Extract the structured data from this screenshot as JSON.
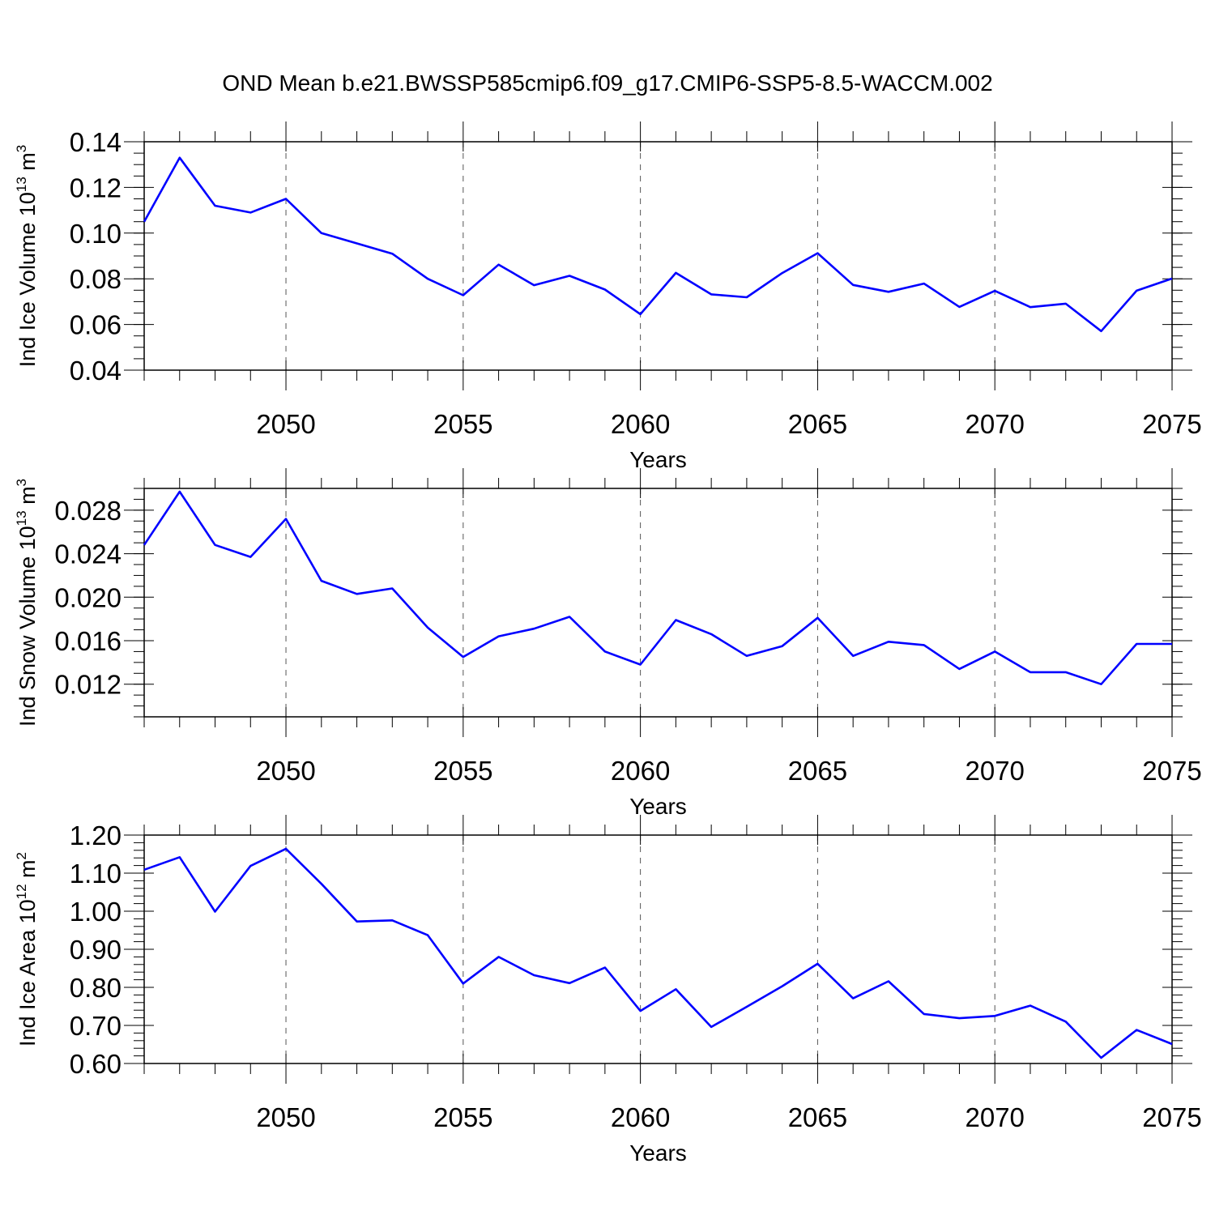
{
  "figure": {
    "title": "OND Mean b.e21.BWSSP585cmip6.f09_g17.CMIP6-SSP5-8.5-WACCM.002",
    "line_color": "#0000ff"
  },
  "chart_data": [
    {
      "type": "line",
      "ylabel_main": "Ind Ice Volume 10",
      "ylabel_sup": "13",
      "ylabel_unit": " m",
      "ylabel_unit_sup": "3",
      "xlabel": "Years",
      "xlim": [
        2046,
        2075
      ],
      "ylim": [
        0.04,
        0.14
      ],
      "yticks": [
        0.04,
        0.06,
        0.08,
        0.1,
        0.12,
        0.14
      ],
      "yticklabels": [
        "0.04",
        "0.06",
        "0.08",
        "0.10",
        "0.12",
        "0.14"
      ],
      "yminor_step": 0.005,
      "xticks": [
        2050,
        2055,
        2060,
        2065,
        2070,
        2075
      ],
      "xticklabels": [
        "2050",
        "2055",
        "2060",
        "2065",
        "2070",
        "2075"
      ],
      "grid": "dashed vertical at major x ticks",
      "x": [
        2046,
        2047,
        2048,
        2049,
        2050,
        2051,
        2052,
        2053,
        2054,
        2055,
        2056,
        2057,
        2058,
        2059,
        2060,
        2061,
        2062,
        2063,
        2064,
        2065,
        2066,
        2067,
        2068,
        2069,
        2070,
        2071,
        2072,
        2073,
        2074,
        2075
      ],
      "y": [
        0.105,
        0.133,
        0.112,
        0.109,
        0.115,
        0.1,
        0.0955,
        0.091,
        0.08,
        0.0728,
        0.0862,
        0.0772,
        0.0813,
        0.0753,
        0.0645,
        0.0826,
        0.0732,
        0.0719,
        0.0825,
        0.0912,
        0.0773,
        0.0743,
        0.0779,
        0.0677,
        0.0747,
        0.0676,
        0.0691,
        0.0571,
        0.0748,
        0.0801
      ]
    },
    {
      "type": "line",
      "ylabel_main": "Ind Snow Volume 10",
      "ylabel_sup": "13",
      "ylabel_unit": " m",
      "ylabel_unit_sup": "3",
      "xlabel": "Years",
      "xlim": [
        2046,
        2075
      ],
      "ylim": [
        0.009,
        0.03
      ],
      "yticks": [
        0.012,
        0.016,
        0.02,
        0.024,
        0.028
      ],
      "yticklabels": [
        "0.012",
        "0.016",
        "0.020",
        "0.024",
        "0.028"
      ],
      "yminor_step": 0.001,
      "xticks": [
        2050,
        2055,
        2060,
        2065,
        2070,
        2075
      ],
      "xticklabels": [
        "2050",
        "2055",
        "2060",
        "2065",
        "2070",
        "2075"
      ],
      "grid": "dashed vertical at major x ticks",
      "x": [
        2046,
        2047,
        2048,
        2049,
        2050,
        2051,
        2052,
        2053,
        2054,
        2055,
        2056,
        2057,
        2058,
        2059,
        2060,
        2061,
        2062,
        2063,
        2064,
        2065,
        2066,
        2067,
        2068,
        2069,
        2070,
        2071,
        2072,
        2073,
        2074,
        2075
      ],
      "y": [
        0.0248,
        0.0297,
        0.0248,
        0.0237,
        0.0272,
        0.0215,
        0.0203,
        0.0208,
        0.0172,
        0.0145,
        0.0164,
        0.0171,
        0.0182,
        0.015,
        0.0138,
        0.0179,
        0.0166,
        0.0146,
        0.0155,
        0.0181,
        0.0146,
        0.0159,
        0.0156,
        0.0134,
        0.015,
        0.0131,
        0.0131,
        0.012,
        0.0157,
        0.0157
      ]
    },
    {
      "type": "line",
      "ylabel_main": "Ind Ice Area 10",
      "ylabel_sup": "12",
      "ylabel_unit": " m",
      "ylabel_unit_sup": "2",
      "xlabel": "Years",
      "xlim": [
        2046,
        2075
      ],
      "ylim": [
        0.6,
        1.2
      ],
      "yticks": [
        0.6,
        0.7,
        0.8,
        0.9,
        1.0,
        1.1,
        1.2
      ],
      "yticklabels": [
        "0.60",
        "0.70",
        "0.80",
        "0.90",
        "1.00",
        "1.10",
        "1.20"
      ],
      "yminor_step": 0.02,
      "xticks": [
        2050,
        2055,
        2060,
        2065,
        2070,
        2075
      ],
      "xticklabels": [
        "2050",
        "2055",
        "2060",
        "2065",
        "2070",
        "2075"
      ],
      "grid": "dashed vertical at major x ticks",
      "x": [
        2046,
        2047,
        2048,
        2049,
        2050,
        2051,
        2052,
        2053,
        2054,
        2055,
        2056,
        2057,
        2058,
        2059,
        2060,
        2061,
        2062,
        2063,
        2064,
        2065,
        2066,
        2067,
        2068,
        2069,
        2070,
        2071,
        2072,
        2073,
        2074,
        2075
      ],
      "y": [
        1.109,
        1.142,
        0.999,
        1.119,
        1.164,
        1.072,
        0.973,
        0.976,
        0.937,
        0.81,
        0.88,
        0.832,
        0.811,
        0.852,
        0.738,
        0.795,
        0.696,
        0.749,
        0.803,
        0.862,
        0.771,
        0.816,
        0.73,
        0.719,
        0.725,
        0.752,
        0.71,
        0.615,
        0.688,
        0.651
      ]
    }
  ]
}
